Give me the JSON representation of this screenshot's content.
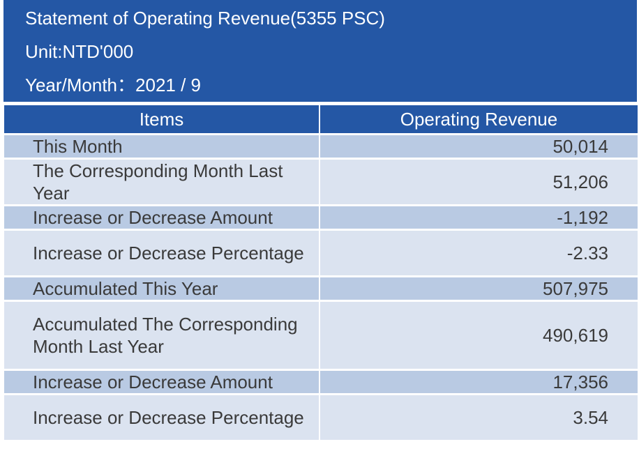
{
  "header": {
    "title": "Statement of Operating Revenue(5355 PSC)",
    "unit": "Unit:NTD'000",
    "period": "Year/Month：2021 / 9"
  },
  "table": {
    "columns": [
      "Items",
      "Operating Revenue"
    ],
    "rows": [
      {
        "item": "This Month",
        "value": "50,014"
      },
      {
        "item": "The Corresponding Month Last Year",
        "value": "51,206"
      },
      {
        "item": "Increase or Decrease Amount",
        "value": "-1,192"
      },
      {
        "item": "Increase or Decrease Percentage",
        "value": "-2.33"
      },
      {
        "item": "Accumulated This Year",
        "value": "507,975"
      },
      {
        "item": "Accumulated The Corresponding Month Last Year",
        "value": "490,619"
      },
      {
        "item": "Increase or Decrease Amount",
        "value": "17,356"
      },
      {
        "item": "Increase or Decrease Percentage",
        "value": "3.54"
      }
    ]
  }
}
